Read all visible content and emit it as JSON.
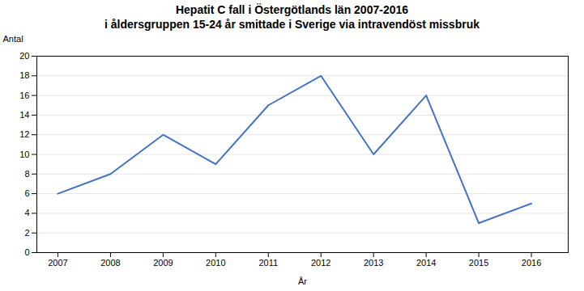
{
  "chart_data": {
    "type": "line",
    "title": "Hepatit C fall i Östergötlands län 2007-2016\ni åldersgruppen 15-24 år smittade i Sverige via intravendöst missbruk",
    "xlabel": "År",
    "ylabel": "Antal",
    "x": [
      2007,
      2008,
      2009,
      2010,
      2011,
      2012,
      2013,
      2014,
      2015,
      2016
    ],
    "values": [
      6,
      8,
      12,
      9,
      15,
      18,
      10,
      16,
      3,
      5
    ],
    "color": "#4472C4",
    "xlim": [
      2006.6,
      2016.7
    ],
    "xticks": [
      2007,
      2008,
      2009,
      2010,
      2011,
      2012,
      2013,
      2014,
      2015,
      2016
    ],
    "ylim": [
      0,
      20
    ],
    "yticks": [
      0,
      2,
      4,
      6,
      8,
      10,
      12,
      14,
      16,
      18,
      20
    ],
    "grid": true
  }
}
